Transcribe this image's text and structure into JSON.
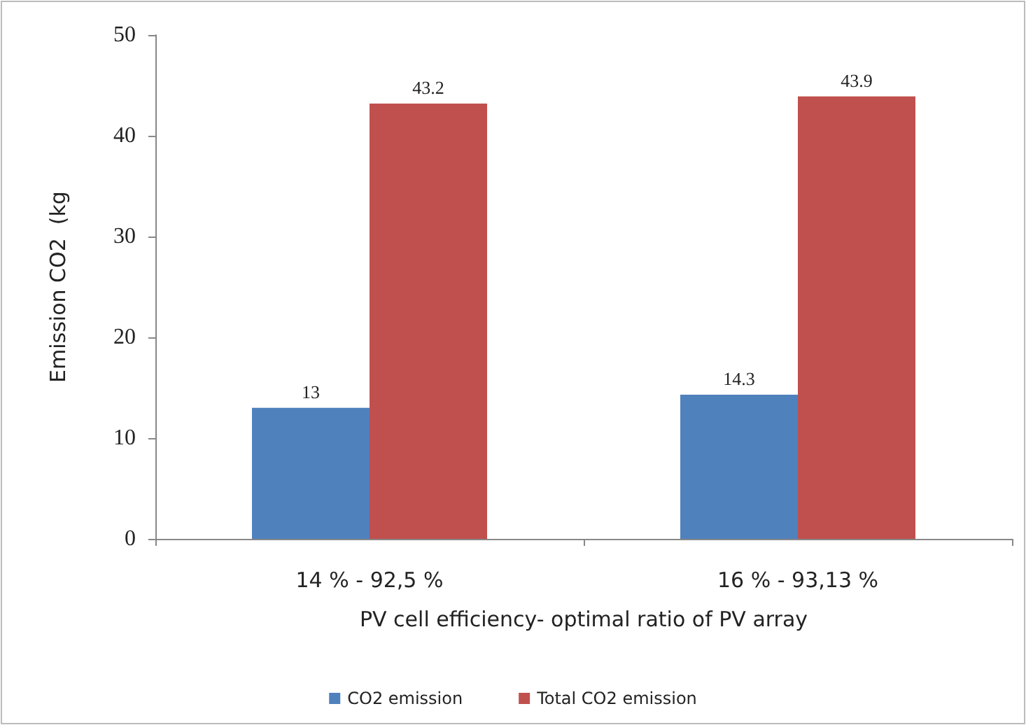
{
  "chart_data": {
    "type": "bar",
    "xlabel": "PV cell efficiency- optimal ratio of PV array",
    "ylabel": "Emission CO2  (kg",
    "categories": [
      "14 % - 92,5 %",
      "16 % - 93,13 %"
    ],
    "series": [
      {
        "name": "CO2 emission",
        "color": "#4f81bd",
        "values": [
          13,
          14.3
        ]
      },
      {
        "name": "Total CO2 emission",
        "color": "#c0504d",
        "values": [
          43.2,
          43.9
        ]
      }
    ],
    "ylim": [
      0,
      50
    ],
    "yticks": [
      0,
      10,
      20,
      30,
      40,
      50
    ],
    "grid": false,
    "legend": "bottom",
    "data_labels": true
  }
}
